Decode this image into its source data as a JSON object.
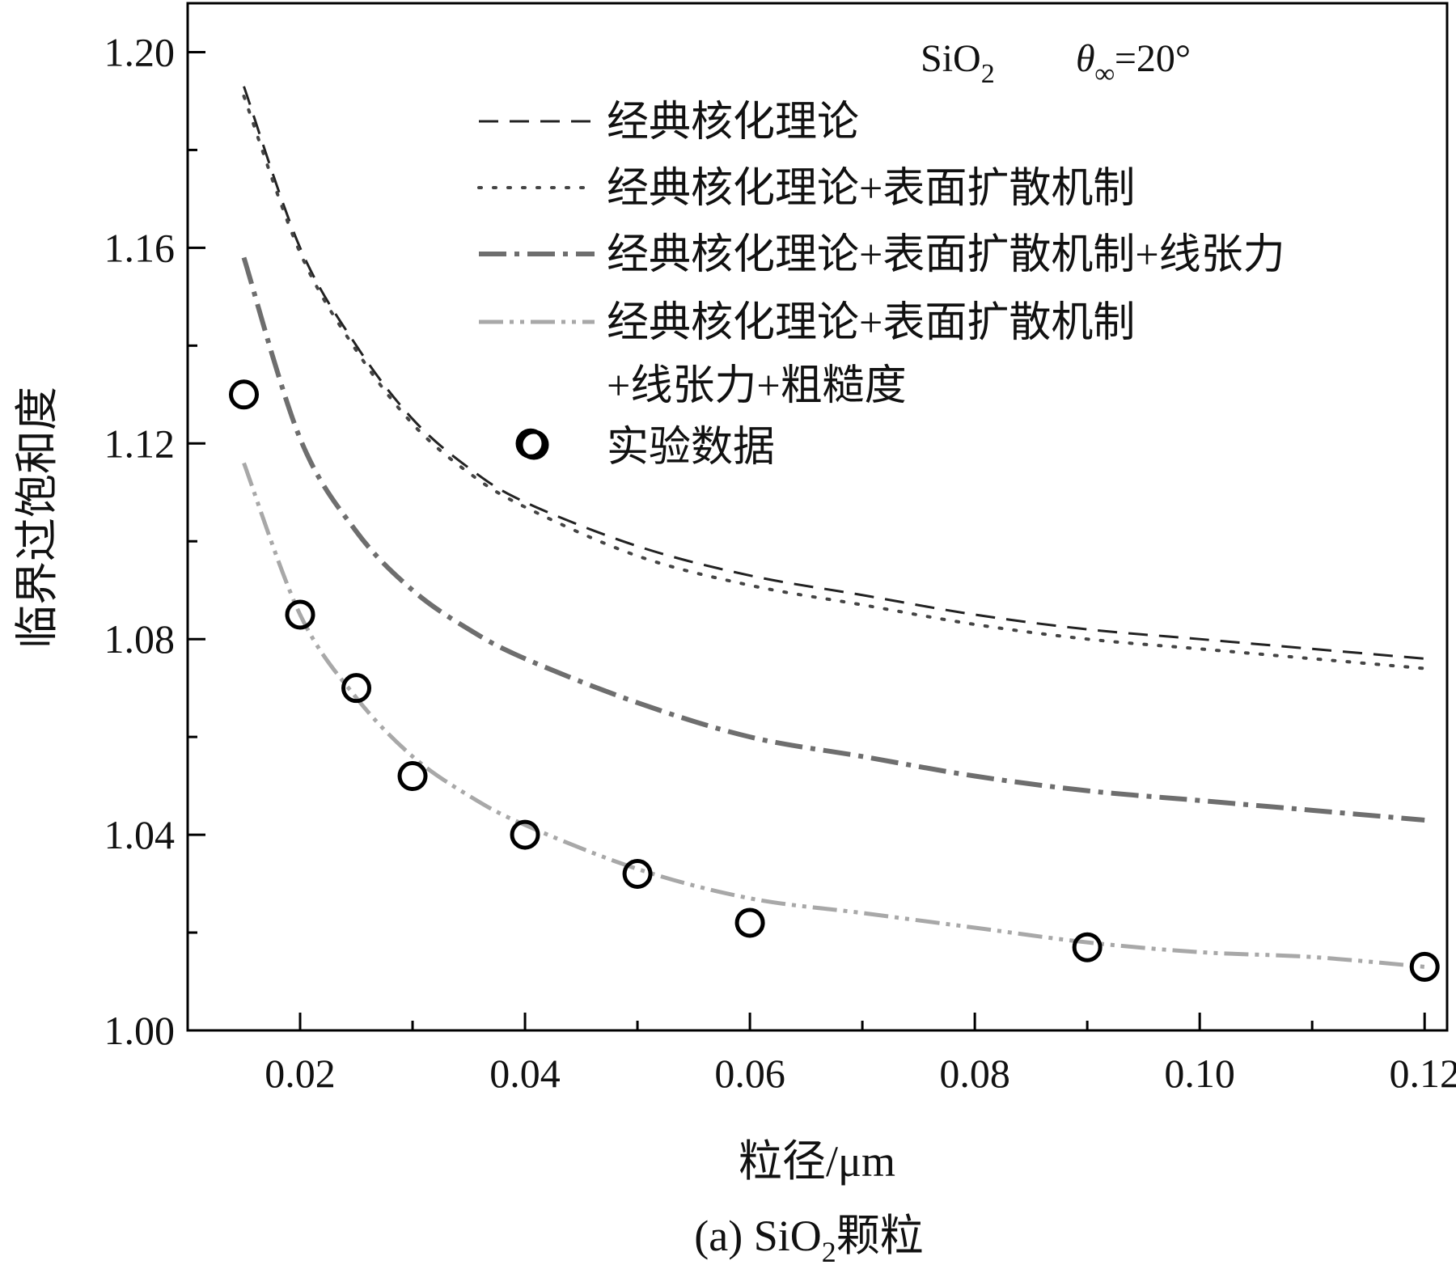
{
  "chart_data": {
    "type": "line",
    "title": "",
    "caption": {
      "prefix": "(a) SiO",
      "sub": "2",
      "suffix": "颗粒"
    },
    "annotation": {
      "material": {
        "main": "SiO",
        "sub": "2"
      },
      "angle": {
        "theta": "θ",
        "sub": "∞",
        "value": "=20°"
      }
    },
    "xlabel": "粒径/μm",
    "ylabel": "临界过饱和度",
    "xlim": [
      0.01,
      0.122
    ],
    "ylim": [
      1.0,
      1.21
    ],
    "xticks": [
      0.02,
      0.04,
      0.06,
      0.08,
      0.1,
      0.12
    ],
    "xtick_labels": [
      "0.02",
      "0.04",
      "0.06",
      "0.08",
      "0.10",
      "0.12"
    ],
    "yticks": [
      1.0,
      1.04,
      1.08,
      1.12,
      1.16,
      1.2
    ],
    "ytick_labels": [
      "1.00",
      "1.04",
      "1.08",
      "1.12",
      "1.16",
      "1.20"
    ],
    "series": [
      {
        "name": "经典核化理论",
        "style": "dash",
        "color": "#222222",
        "x": [
          0.015,
          0.02,
          0.025,
          0.03,
          0.035,
          0.04,
          0.05,
          0.06,
          0.07,
          0.08,
          0.09,
          0.1,
          0.11,
          0.12
        ],
        "values": [
          1.193,
          1.16,
          1.14,
          1.125,
          1.115,
          1.108,
          1.099,
          1.093,
          1.089,
          1.085,
          1.082,
          1.08,
          1.078,
          1.076
        ]
      },
      {
        "name": "经典核化理论+表面扩散机制",
        "style": "dot",
        "color": "#444444",
        "x": [
          0.015,
          0.02,
          0.025,
          0.03,
          0.035,
          0.04,
          0.05,
          0.06,
          0.07,
          0.08,
          0.09,
          0.1,
          0.11,
          0.12
        ],
        "values": [
          1.191,
          1.159,
          1.139,
          1.124,
          1.114,
          1.107,
          1.097,
          1.091,
          1.087,
          1.083,
          1.08,
          1.078,
          1.076,
          1.074
        ]
      },
      {
        "name": "经典核化理论+表面扩散机制+线张力",
        "style": "dashdot",
        "color": "#6e6e6e",
        "x": [
          0.015,
          0.02,
          0.025,
          0.03,
          0.035,
          0.04,
          0.05,
          0.06,
          0.07,
          0.08,
          0.09,
          0.1,
          0.11,
          0.12
        ],
        "values": [
          1.158,
          1.121,
          1.102,
          1.09,
          1.082,
          1.076,
          1.067,
          1.06,
          1.056,
          1.052,
          1.049,
          1.047,
          1.045,
          1.043
        ]
      },
      {
        "name": "经典核化理论+表面扩散机制",
        "name_line2": "+线张力+粗糙度",
        "style": "dashdotdot",
        "color": "#a8a8a8",
        "x": [
          0.015,
          0.02,
          0.025,
          0.03,
          0.035,
          0.04,
          0.05,
          0.06,
          0.07,
          0.08,
          0.09,
          0.1,
          0.11,
          0.12
        ],
        "values": [
          1.116,
          1.085,
          1.068,
          1.056,
          1.048,
          1.042,
          1.033,
          1.027,
          1.024,
          1.021,
          1.018,
          1.016,
          1.015,
          1.013
        ]
      }
    ],
    "scatter": {
      "name": "实验数据",
      "marker": "open-circle",
      "color": "#000000",
      "x": [
        0.015,
        0.02,
        0.025,
        0.03,
        0.04,
        0.0405,
        0.05,
        0.06,
        0.09,
        0.12
      ],
      "values": [
        1.13,
        1.085,
        1.07,
        1.052,
        1.04,
        1.12,
        1.032,
        1.022,
        1.017,
        1.013
      ]
    },
    "legend_position": "top-right"
  }
}
